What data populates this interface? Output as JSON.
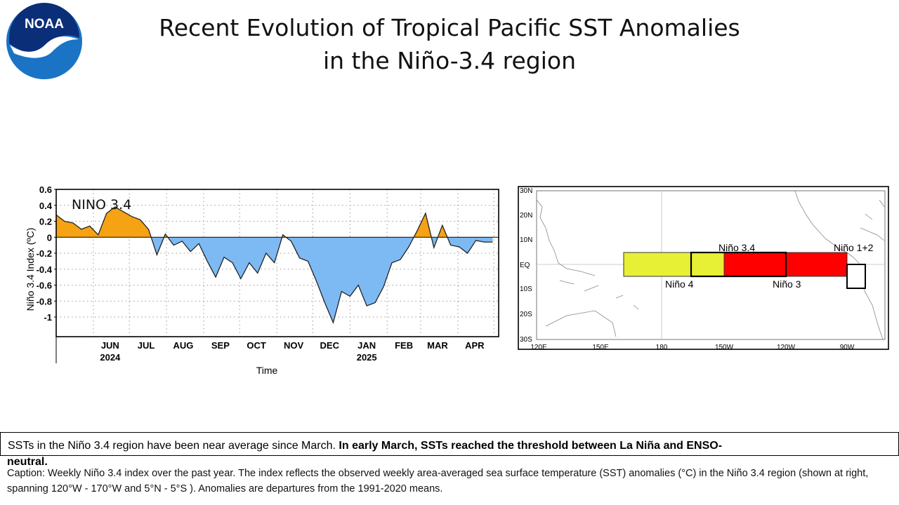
{
  "header": {
    "logo_text": "NOAA",
    "title_line1": "Recent Evolution of Tropical Pacific SST Anomalies",
    "title_line2": "in the Niño-3.4 region"
  },
  "colors": {
    "positive_fill": "#f5a214",
    "negative_fill": "#7dbaf4",
    "map_nino4": "#e8f035",
    "map_nino34_red": "#ff0000",
    "noaa_blue": "#1a73c4"
  },
  "chart_data": {
    "type": "area",
    "title": "NINO 3.4",
    "xlabel": "Time",
    "ylabel": "Niño 3.4 Index (ºC)",
    "x_labels": [
      "JUN",
      "JUL",
      "AUG",
      "SEP",
      "OCT",
      "NOV",
      "DEC",
      "JAN",
      "FEB",
      "MAR",
      "APR"
    ],
    "x_year_labels": [
      {
        "month": "JUN",
        "year": "2024"
      },
      {
        "month": "JAN",
        "year": "2025"
      }
    ],
    "y_ticks": [
      "0.6",
      "0.4",
      "0.2",
      "0",
      "-0.2",
      "-0.4",
      "-0.6",
      "-0.8",
      "-1"
    ],
    "ylim": [
      -1.2,
      0.6
    ],
    "grid": true,
    "x_range": [
      "2024-05-01",
      "2025-05-05"
    ],
    "x_dates": [
      "2024-05-01",
      "2024-05-08",
      "2024-05-15",
      "2024-05-22",
      "2024-05-29",
      "2024-06-05",
      "2024-06-12",
      "2024-06-19",
      "2024-06-26",
      "2024-07-03",
      "2024-07-10",
      "2024-07-17",
      "2024-07-24",
      "2024-07-31",
      "2024-08-07",
      "2024-08-14",
      "2024-08-21",
      "2024-08-28",
      "2024-09-04",
      "2024-09-11",
      "2024-09-18",
      "2024-09-25",
      "2024-10-02",
      "2024-10-09",
      "2024-10-16",
      "2024-10-23",
      "2024-10-30",
      "2024-11-06",
      "2024-11-13",
      "2024-11-20",
      "2024-11-27",
      "2024-12-04",
      "2024-12-11",
      "2024-12-18",
      "2024-12-25",
      "2025-01-01",
      "2025-01-08",
      "2025-01-15",
      "2025-01-22",
      "2025-01-29",
      "2025-02-05",
      "2025-02-12",
      "2025-02-19",
      "2025-02-26",
      "2025-03-05",
      "2025-03-12",
      "2025-03-19",
      "2025-03-26",
      "2025-04-02",
      "2025-04-09",
      "2025-04-16",
      "2025-04-23",
      "2025-04-30"
    ],
    "values": [
      0.28,
      0.2,
      0.18,
      0.1,
      0.14,
      0.03,
      0.3,
      0.38,
      0.32,
      0.26,
      0.22,
      0.1,
      -0.22,
      0.04,
      -0.1,
      -0.05,
      -0.18,
      -0.08,
      -0.3,
      -0.5,
      -0.25,
      -0.32,
      -0.52,
      -0.32,
      -0.45,
      -0.2,
      -0.32,
      0.03,
      -0.05,
      -0.26,
      -0.3,
      -0.55,
      -0.82,
      -1.07,
      -0.68,
      -0.74,
      -0.6,
      -0.86,
      -0.82,
      -0.62,
      -0.32,
      -0.28,
      -0.12,
      0.08,
      0.3,
      -0.13,
      0.15,
      -0.1,
      -0.12,
      -0.2,
      -0.04,
      -0.06,
      -0.06
    ]
  },
  "map": {
    "lat_labels": [
      "30N",
      "20N",
      "10N",
      "EQ",
      "10S",
      "20S",
      "30S"
    ],
    "lon_labels": [
      "120E",
      "150E",
      "180",
      "150W",
      "120W",
      "90W"
    ],
    "region_labels": {
      "nino34": "Niño 3.4",
      "nino12": "Niño 1+2",
      "nino4": "Niño 4",
      "nino3": "Niño 3"
    }
  },
  "summary": {
    "normal_text": "SSTs in the Niño 3.4 region have been near average since March.",
    "bold_text": "In early March, SSTs reached the threshold between La Niña and ENSO-",
    "bold_overflow": "neutral."
  },
  "caption": {
    "text": "Caption: Weekly Niño 3.4 index over the past year. The index reflects the observed weekly area-averaged sea surface temperature (SST) anomalies (°C) in the Niño 3.4 region (shown at right, spanning 120°W - 170°W and 5°N - 5°S ). Anomalies are departures from the 1991-2020 means."
  }
}
